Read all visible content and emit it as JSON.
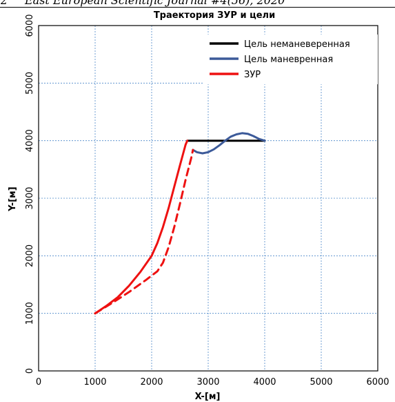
{
  "page_header": {
    "number": "2",
    "text": "East European Scientific Journal #4(56), 2020"
  },
  "chart_data": {
    "type": "line",
    "title": "Траектория ЗУР и цели",
    "xlabel": "X-[м]",
    "ylabel": "Y-[м]",
    "xlim": [
      0,
      6000
    ],
    "ylim": [
      0,
      6000
    ],
    "xticks": [
      0,
      1000,
      2000,
      3000,
      4000,
      5000,
      6000
    ],
    "yticks": [
      0,
      1000,
      2000,
      3000,
      4000,
      5000,
      6000
    ],
    "grid": true,
    "legend_position": "top-right",
    "series": [
      {
        "name": "Цель неманеверенная",
        "color": "#000000",
        "style": "solid",
        "x": [
          2630,
          4000
        ],
        "y": [
          4000,
          4000
        ]
      },
      {
        "name": "Цель маневренная",
        "color": "#3c5a99",
        "style": "solid",
        "x": [
          2730,
          2800,
          2900,
          3000,
          3100,
          3200,
          3300,
          3400,
          3500,
          3600,
          3700,
          3800,
          3900,
          4000
        ],
        "y": [
          3840,
          3800,
          3780,
          3800,
          3850,
          3920,
          4000,
          4070,
          4110,
          4130,
          4120,
          4080,
          4030,
          4000
        ]
      },
      {
        "name": "ЗУР",
        "color": "#ee1111",
        "style": "solid",
        "x": [
          1000,
          1200,
          1400,
          1600,
          1800,
          2000,
          2100,
          2200,
          2300,
          2400,
          2500,
          2600,
          2630
        ],
        "y": [
          1000,
          1130,
          1280,
          1480,
          1720,
          2000,
          2220,
          2500,
          2830,
          3200,
          3570,
          3930,
          4000
        ]
      },
      {
        "color": "#ee1111",
        "style": "dashed",
        "x": [
          1000,
          1300,
          1600,
          1900,
          2100,
          2200,
          2300,
          2400,
          2500,
          2600,
          2700,
          2730
        ],
        "y": [
          1000,
          1180,
          1370,
          1580,
          1730,
          1880,
          2150,
          2500,
          2900,
          3320,
          3700,
          3840
        ]
      }
    ]
  }
}
